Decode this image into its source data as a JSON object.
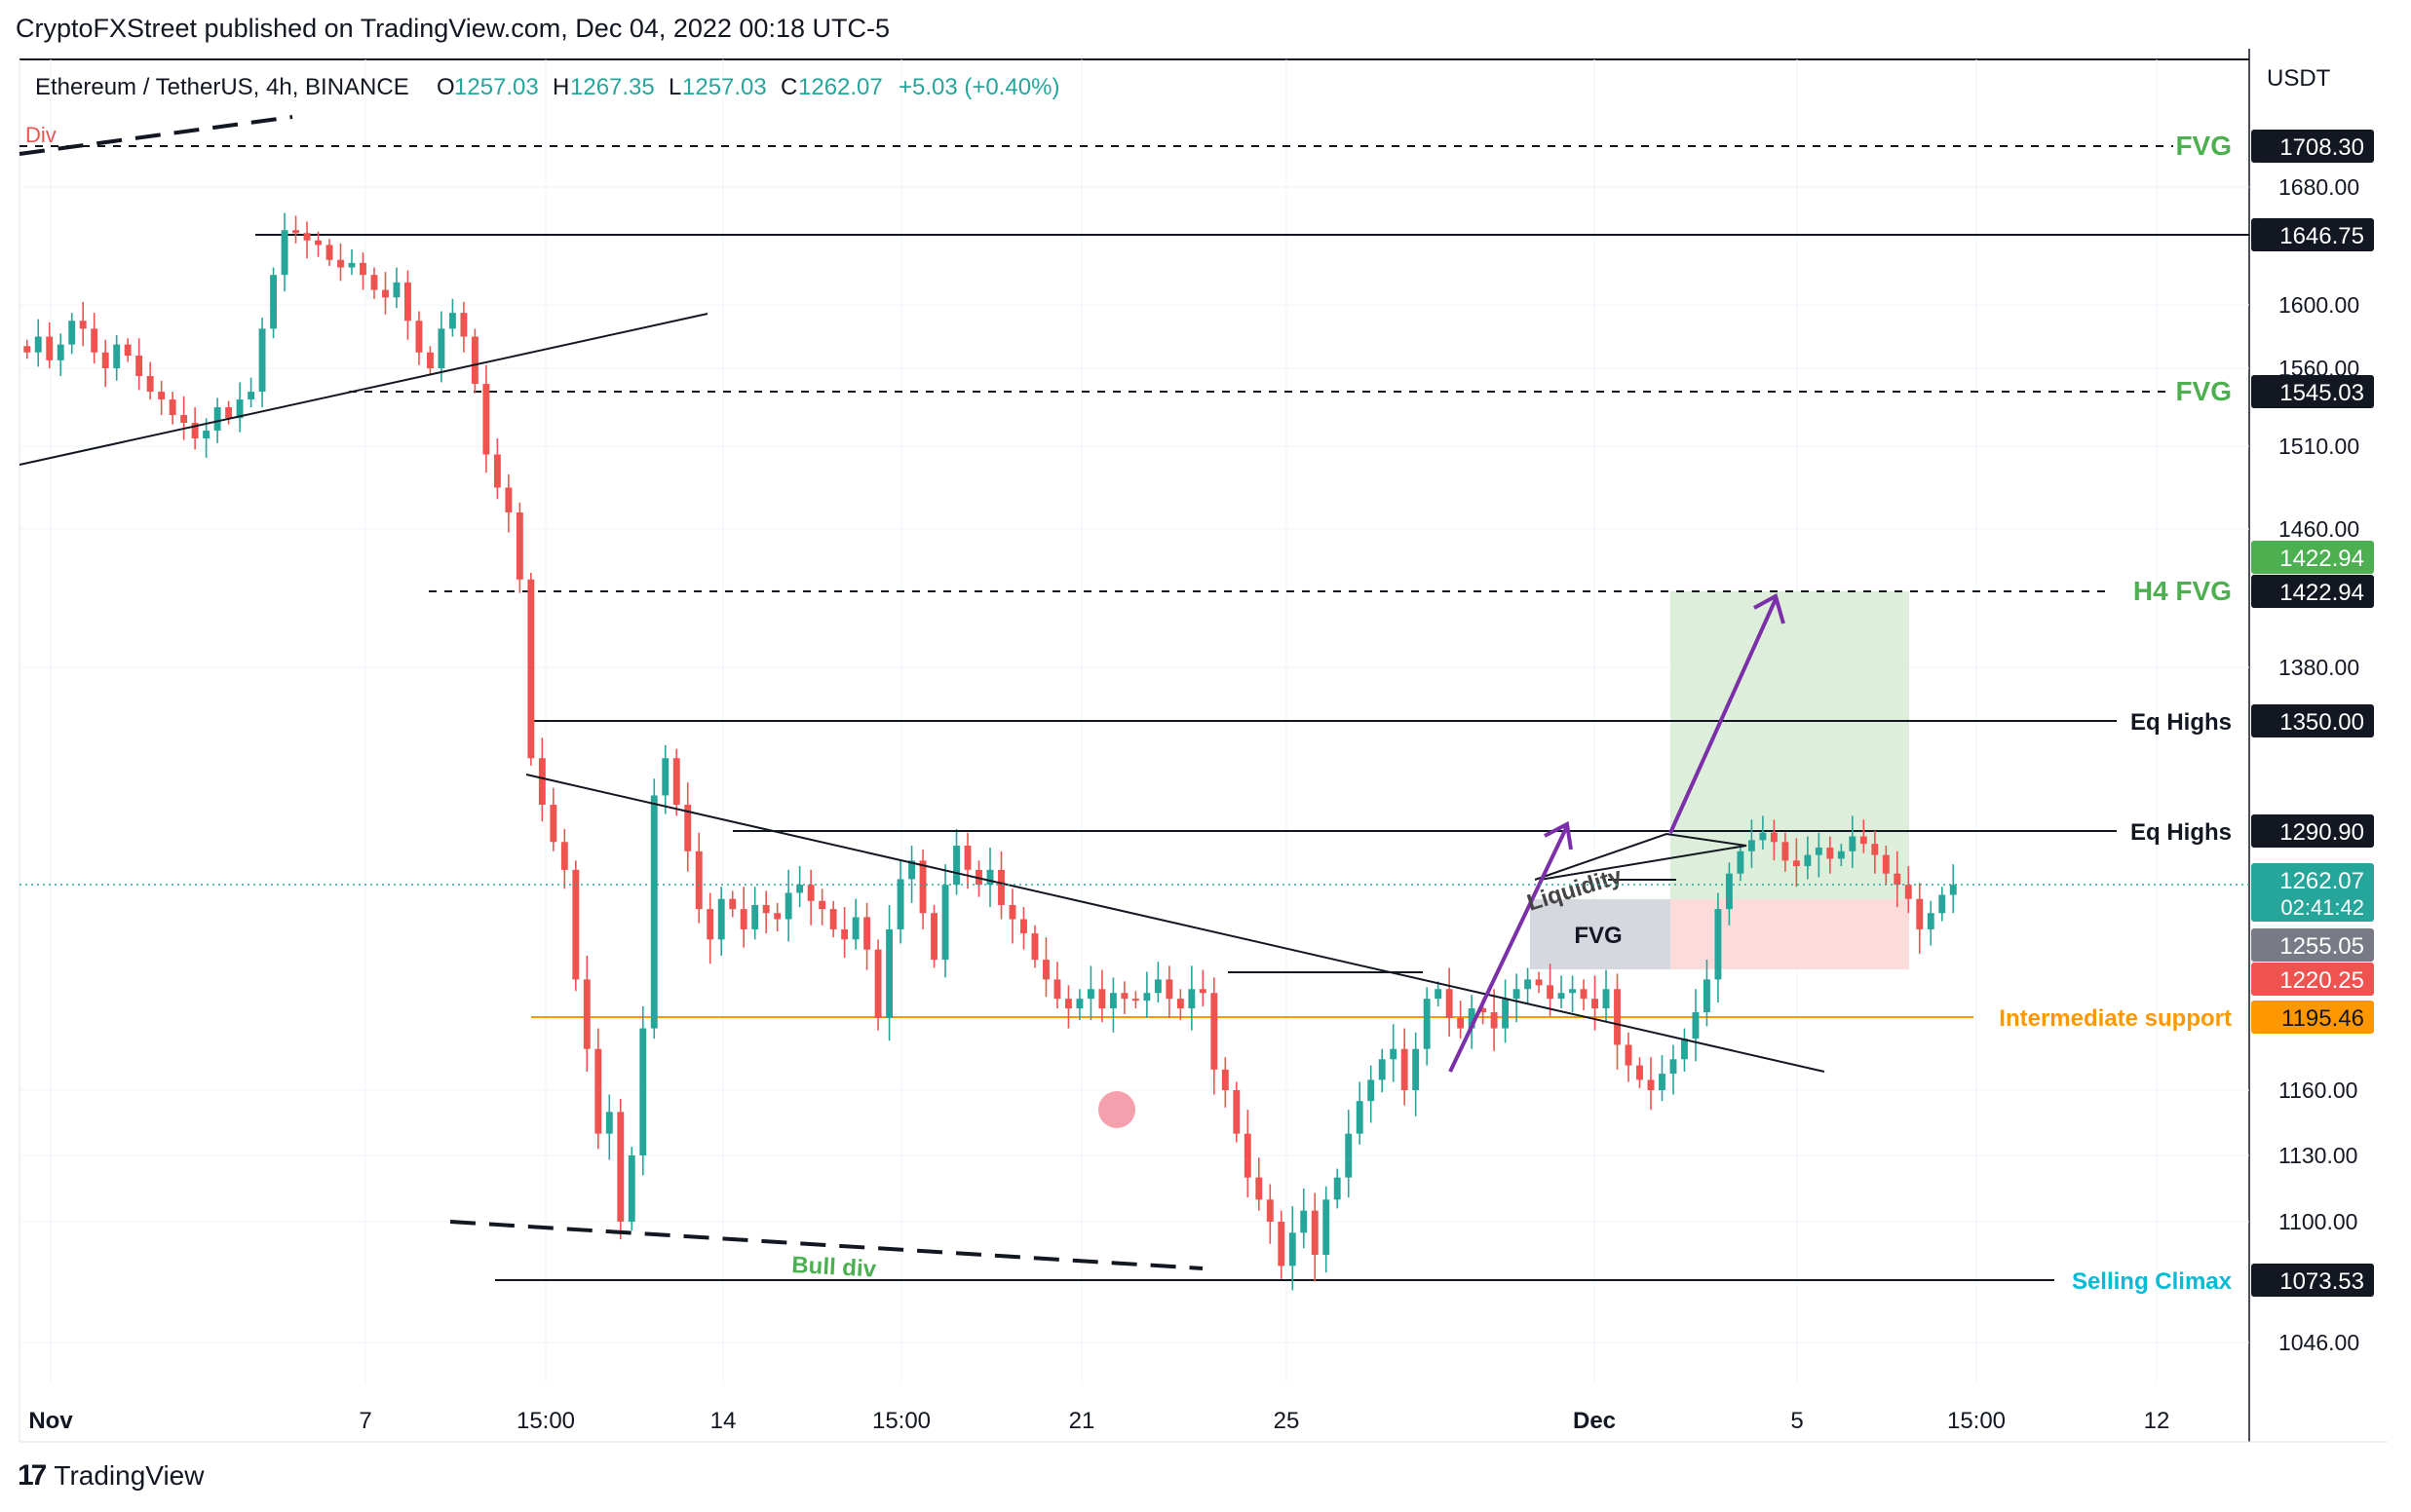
{
  "publisher": "CryptoFXStreet published on TradingView.com, Dec 04, 2022 00:18 UTC-5",
  "footer": {
    "logo_text": "TradingView",
    "logo_icon": "tradingview-logo-icon"
  },
  "colors": {
    "up": "#26a69a",
    "down": "#ef5350",
    "green_label": "#4caf50",
    "orange": "#ff9800",
    "cyan": "#00bcd4",
    "purple": "#7b2fa8",
    "tp_zone": "#d7ecd3",
    "sl_zone": "#fcd7d7",
    "fvg_box": "#d1d4dc"
  },
  "chart_data": {
    "type": "candlestick",
    "symbol": "Ethereum / TetherUS, 4h, BINANCE",
    "ohlc": {
      "o": "O",
      "o_val": "1257.03",
      "h": "H",
      "h_val": "1267.35",
      "l": "L",
      "l_val": "1257.03",
      "c": "C",
      "c_val": "1262.07",
      "chg": "+5.03 (+0.40%)"
    },
    "currency": "USDT",
    "ylim": [
      1030,
      1735
    ],
    "y_ticks": [
      "1046.00",
      "1100.00",
      "1130.00",
      "1160.00",
      "1380.00",
      "1460.00",
      "1510.00",
      "1560.00",
      "1600.00",
      "1680.00"
    ],
    "x_ticks": [
      "Nov",
      "7",
      "15:00",
      "14",
      "15:00",
      "21",
      "25",
      "Dec",
      "5",
      "15:00",
      "12"
    ],
    "annotations": {
      "div": "Div",
      "bull_div": "Bull div",
      "liquidity": "Liquidity",
      "fvg_box": "FVG"
    },
    "levels": [
      {
        "label": "FVG",
        "value": "1708.30",
        "style": "dashed",
        "label_color": "green"
      },
      {
        "label": "",
        "value": "1646.75",
        "style": "solid",
        "label_color": "none"
      },
      {
        "label": "FVG",
        "value": "1545.03",
        "style": "dashed",
        "label_color": "green"
      },
      {
        "label": "H4 FVG",
        "value": "1422.94",
        "style": "dashed",
        "label_color": "green"
      },
      {
        "label": "Eq Highs",
        "value": "1350.00",
        "style": "solid",
        "label_color": "black"
      },
      {
        "label": "Eq Highs",
        "value": "1290.90",
        "style": "solid",
        "label_color": "black"
      },
      {
        "label": "Intermediate support",
        "value": "1195.46",
        "style": "solid",
        "label_color": "orange"
      },
      {
        "label": "Selling Climax",
        "value": "1073.53",
        "style": "solid",
        "label_color": "cyan"
      }
    ],
    "price_tags": [
      {
        "value": "1422.94",
        "color": "green"
      },
      {
        "value": "1262.07",
        "sub": "02:41:42",
        "color": "teal"
      },
      {
        "value": "1255.05",
        "color": "gray"
      },
      {
        "value": "1220.25",
        "color": "red"
      }
    ],
    "closes": [
      1570,
      1580,
      1565,
      1575,
      1590,
      1585,
      1570,
      1560,
      1575,
      1568,
      1555,
      1545,
      1540,
      1530,
      1525,
      1515,
      1520,
      1535,
      1528,
      1540,
      1545,
      1585,
      1620,
      1650,
      1648,
      1643,
      1640,
      1630,
      1625,
      1628,
      1620,
      1610,
      1605,
      1615,
      1590,
      1570,
      1560,
      1585,
      1595,
      1580,
      1550,
      1505,
      1485,
      1470,
      1430,
      1330,
      1305,
      1285,
      1270,
      1215,
      1180,
      1140,
      1150,
      1100,
      1130,
      1190,
      1310,
      1330,
      1305,
      1280,
      1250,
      1235,
      1255,
      1250,
      1240,
      1252,
      1248,
      1245,
      1258,
      1262,
      1254,
      1250,
      1240,
      1235,
      1246,
      1230,
      1195,
      1240,
      1265,
      1275,
      1248,
      1225,
      1262,
      1283,
      1270,
      1262,
      1270,
      1252,
      1245,
      1238,
      1225,
      1215,
      1205,
      1200,
      1205,
      1210,
      1200,
      1208,
      1205,
      1204,
      1208,
      1215,
      1205,
      1200,
      1210,
      1208,
      1170,
      1160,
      1140,
      1120,
      1110,
      1100,
      1080,
      1095,
      1105,
      1085,
      1110,
      1120,
      1140,
      1155,
      1165,
      1175,
      1180,
      1160,
      1180,
      1205,
      1210,
      1195,
      1190,
      1200,
      1198,
      1190,
      1205,
      1210,
      1215,
      1212,
      1205,
      1208,
      1210,
      1205,
      1200,
      1210,
      1182,
      1172,
      1165,
      1160,
      1168,
      1175,
      1185,
      1198,
      1215,
      1250,
      1268,
      1280,
      1286,
      1290,
      1285,
      1275,
      1272,
      1278,
      1282,
      1276,
      1280,
      1288,
      1284,
      1278,
      1268,
      1262,
      1255,
      1240,
      1248,
      1257,
      1262
    ]
  }
}
